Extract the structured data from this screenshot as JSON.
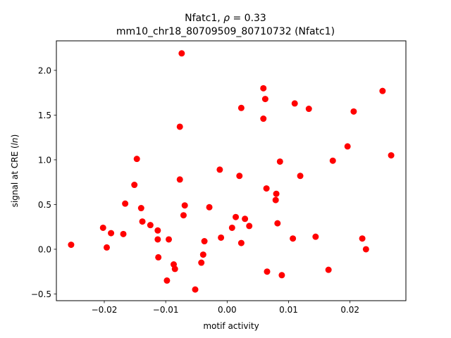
{
  "chart_data": {
    "type": "scatter",
    "title_line1_prefix": "Nfatc1, ",
    "title_rho_symbol": "ρ",
    "title_rho_value": " = 0.33",
    "title_line2": "mm10_chr18_80709509_80710732 (Nfatc1)",
    "xlabel": "motif activity",
    "ylabel_prefix": "signal at CRE (",
    "ylabel_math": "ln",
    "ylabel_suffix": ")",
    "xlim": [
      -0.0278,
      0.0291
    ],
    "ylim": [
      -0.575,
      2.33
    ],
    "xticks": [
      -0.02,
      -0.01,
      0.0,
      0.01,
      0.02
    ],
    "xtick_labels": [
      "−0.02",
      "−0.01",
      "0.00",
      "0.01",
      "0.02"
    ],
    "yticks": [
      -0.5,
      0.0,
      0.5,
      1.0,
      1.5,
      2.0
    ],
    "ytick_labels": [
      "−0.5",
      "0.0",
      "0.5",
      "1.0",
      "1.5",
      "2.0"
    ],
    "grid": false,
    "marker_color": "#ff0000",
    "points": [
      {
        "x": -0.0254,
        "y": 0.05
      },
      {
        "x": -0.0202,
        "y": 0.24
      },
      {
        "x": -0.0196,
        "y": 0.02
      },
      {
        "x": -0.0189,
        "y": 0.18
      },
      {
        "x": -0.0169,
        "y": 0.17
      },
      {
        "x": -0.0166,
        "y": 0.51
      },
      {
        "x": -0.0151,
        "y": 0.72
      },
      {
        "x": -0.0147,
        "y": 1.01
      },
      {
        "x": -0.014,
        "y": 0.46
      },
      {
        "x": -0.0138,
        "y": 0.31
      },
      {
        "x": -0.0125,
        "y": 0.27
      },
      {
        "x": -0.0113,
        "y": 0.21
      },
      {
        "x": -0.0113,
        "y": 0.11
      },
      {
        "x": -0.0112,
        "y": -0.09
      },
      {
        "x": -0.0098,
        "y": -0.35
      },
      {
        "x": -0.0095,
        "y": 0.11
      },
      {
        "x": -0.0087,
        "y": -0.17
      },
      {
        "x": -0.0085,
        "y": -0.22
      },
      {
        "x": -0.0077,
        "y": 1.37
      },
      {
        "x": -0.0077,
        "y": 0.78
      },
      {
        "x": -0.0074,
        "y": 2.19
      },
      {
        "x": -0.0071,
        "y": 0.38
      },
      {
        "x": -0.0069,
        "y": 0.49
      },
      {
        "x": -0.0052,
        "y": -0.45
      },
      {
        "x": -0.0042,
        "y": -0.15
      },
      {
        "x": -0.0039,
        "y": -0.06
      },
      {
        "x": -0.0037,
        "y": 0.09
      },
      {
        "x": -0.0029,
        "y": 0.47
      },
      {
        "x": -0.0012,
        "y": 0.89
      },
      {
        "x": -0.001,
        "y": 0.13
      },
      {
        "x": 0.0008,
        "y": 0.24
      },
      {
        "x": 0.0014,
        "y": 0.36
      },
      {
        "x": 0.002,
        "y": 0.82
      },
      {
        "x": 0.0023,
        "y": 0.07
      },
      {
        "x": 0.0023,
        "y": 1.58
      },
      {
        "x": 0.0029,
        "y": 0.34
      },
      {
        "x": 0.0036,
        "y": 0.26
      },
      {
        "x": 0.0059,
        "y": 1.8
      },
      {
        "x": 0.0059,
        "y": 1.46
      },
      {
        "x": 0.0062,
        "y": 1.68
      },
      {
        "x": 0.0064,
        "y": 0.68
      },
      {
        "x": 0.0065,
        "y": -0.25
      },
      {
        "x": 0.0079,
        "y": 0.55
      },
      {
        "x": 0.008,
        "y": 0.62
      },
      {
        "x": 0.0082,
        "y": 0.29
      },
      {
        "x": 0.0086,
        "y": 0.98
      },
      {
        "x": 0.0089,
        "y": -0.29
      },
      {
        "x": 0.0107,
        "y": 0.12
      },
      {
        "x": 0.011,
        "y": 1.63
      },
      {
        "x": 0.0119,
        "y": 0.82
      },
      {
        "x": 0.0133,
        "y": 1.57
      },
      {
        "x": 0.0144,
        "y": 0.14
      },
      {
        "x": 0.0165,
        "y": -0.23
      },
      {
        "x": 0.0172,
        "y": 0.99
      },
      {
        "x": 0.0196,
        "y": 1.15
      },
      {
        "x": 0.0206,
        "y": 1.54
      },
      {
        "x": 0.022,
        "y": 0.12
      },
      {
        "x": 0.0226,
        "y": 0.0
      },
      {
        "x": 0.0253,
        "y": 1.77
      },
      {
        "x": 0.0267,
        "y": 1.05
      }
    ]
  }
}
